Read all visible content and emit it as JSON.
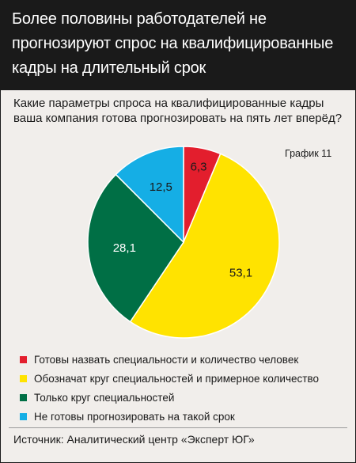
{
  "header": {
    "title": "Более половины работодателей не прогнозируют спрос на квалифицированные кадры на длительный срок"
  },
  "chart_data": {
    "type": "pie",
    "title": "Какие параметры спроса на квалифицированные кадры ваша компания готова прогнозировать на пять лет вперёд?",
    "chart_number": "График 11",
    "value_labels": [
      "6,3",
      "53,1",
      "28,1",
      "12,5"
    ],
    "slices": [
      {
        "label": "Готовы назвать специальности и количество человек",
        "value": 6.3,
        "color": "#e31e2d"
      },
      {
        "label": "Обозначат круг специальностей и примерное количество",
        "value": 53.1,
        "color": "#ffe300"
      },
      {
        "label": "Только круг специальностей",
        "value": 28.1,
        "color": "#006f45"
      },
      {
        "label": "Не готовы прогнозировать на такой срок",
        "value": 12.5,
        "color": "#15aee5"
      }
    ],
    "legend_position": "bottom"
  },
  "source": "Источник: Аналитический центр «Эксперт ЮГ»"
}
